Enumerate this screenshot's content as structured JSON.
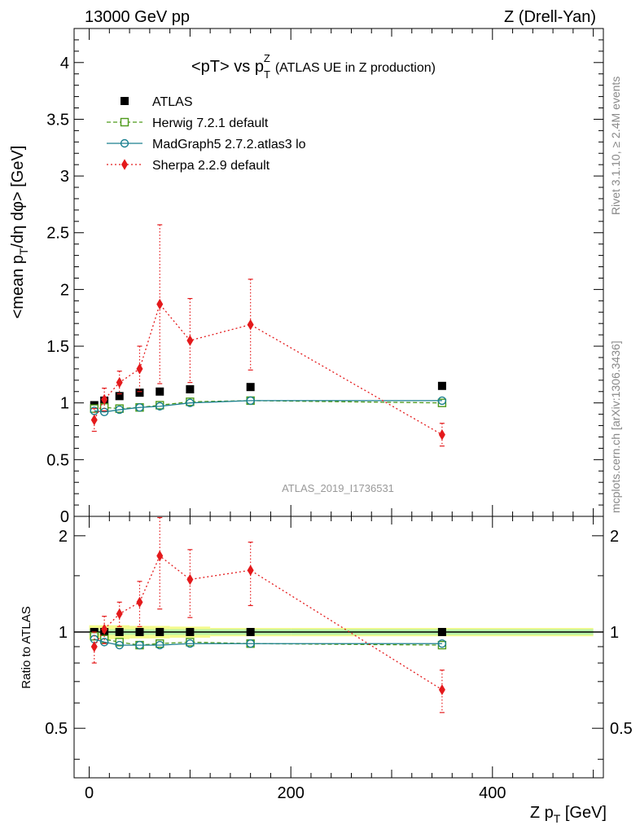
{
  "header": {
    "left": "13000 GeV pp",
    "right": "Z (Drell-Yan)"
  },
  "side_text": {
    "top": "Rivet 3.1.10, ≥ 2.4M events",
    "bottom": "mcplots.cern.ch [arXiv:1306.3436]"
  },
  "watermark": "ATLAS_2019_I1736531",
  "chart_data": {
    "type": "scatter",
    "title": "<pT> vs pTZ (ATLAS UE in Z production)",
    "title_parts": {
      "main": "<pT> vs p",
      "sup": "Z",
      "sub": "T",
      "rest": "(ATLAS UE in Z production)"
    },
    "ylabel": "<mean pT/dη dφ> [GeV]",
    "ylabel_parts": {
      "a": "<mean p",
      "sub": "T",
      "b": "/dη dφ> [GeV]"
    },
    "xlabel": "Z pT [GeV]",
    "xlabel_parts": {
      "a": "Z p",
      "sub": "T",
      "b": " [GeV]"
    },
    "ratio_ylabel": "Ratio to ATLAS",
    "xlim": [
      -15,
      510
    ],
    "ylim": [
      0,
      4.3
    ],
    "ratio_ylim": [
      0.35,
      2.3
    ],
    "x_ticks": [
      "0",
      "200",
      "400"
    ],
    "y_ticks": [
      "0",
      "0.5",
      "1",
      "1.5",
      "2",
      "2.5",
      "3",
      "3.5",
      "4"
    ],
    "ratio_ticks": [
      "0.5",
      "1",
      "2"
    ],
    "legend_position": "top-left",
    "band": {
      "bins": [
        [
          0,
          10
        ],
        [
          10,
          20
        ],
        [
          20,
          40
        ],
        [
          40,
          60
        ],
        [
          60,
          80
        ],
        [
          80,
          120
        ],
        [
          120,
          200
        ],
        [
          200,
          500
        ]
      ],
      "inner": [
        0.02,
        0.02,
        0.02,
        0.02,
        0.02,
        0.02,
        0.02,
        0.02
      ],
      "outer": [
        0.05,
        0.05,
        0.05,
        0.045,
        0.045,
        0.04,
        0.03,
        0.03
      ]
    },
    "series": [
      {
        "name": "ATLAS",
        "color": "#000000",
        "marker": "square-filled",
        "x": [
          5,
          15,
          30,
          50,
          70,
          100,
          160,
          350
        ],
        "y": [
          0.98,
          1.02,
          1.06,
          1.09,
          1.1,
          1.12,
          1.14,
          1.15
        ],
        "err": [
          0,
          0,
          0,
          0,
          0,
          0,
          0,
          0
        ],
        "ratio": [
          1,
          1,
          1,
          1,
          1,
          1,
          1,
          1
        ],
        "ratio_err": [
          0,
          0,
          0,
          0,
          0,
          0,
          0,
          0
        ]
      },
      {
        "name": "Herwig 7.2.1 default",
        "color": "#4d9a1a",
        "marker": "square-open",
        "x": [
          5,
          15,
          30,
          50,
          70,
          100,
          160,
          350
        ],
        "y": [
          0.95,
          0.96,
          0.95,
          0.96,
          0.98,
          1.01,
          1.02,
          1.0
        ],
        "err": [
          0,
          0,
          0,
          0,
          0,
          0,
          0,
          0
        ],
        "ratio": [
          0.97,
          0.95,
          0.93,
          0.91,
          0.92,
          0.93,
          0.92,
          0.91
        ],
        "ratio_err": [
          0,
          0,
          0,
          0,
          0,
          0,
          0,
          0
        ]
      },
      {
        "name": "MadGraph5 2.7.2.atlas3 lo",
        "color": "#1a7f8f",
        "marker": "circle-open",
        "x": [
          5,
          15,
          30,
          50,
          70,
          100,
          160,
          350
        ],
        "y": [
          0.93,
          0.92,
          0.94,
          0.96,
          0.97,
          1.0,
          1.02,
          1.02
        ],
        "err": [
          0,
          0,
          0,
          0,
          0,
          0,
          0,
          0
        ],
        "ratio": [
          0.95,
          0.93,
          0.91,
          0.91,
          0.91,
          0.92,
          0.92,
          0.92
        ],
        "ratio_err": [
          0,
          0,
          0,
          0,
          0,
          0,
          0,
          0
        ]
      },
      {
        "name": "Sherpa 2.2.9 default",
        "color": "#e41a1c",
        "marker": "diamond-filled",
        "x": [
          5,
          15,
          30,
          50,
          70,
          100,
          160,
          350
        ],
        "y": [
          0.85,
          1.03,
          1.18,
          1.3,
          1.87,
          1.55,
          1.69,
          0.72
        ],
        "err": [
          0.1,
          0.1,
          0.1,
          0.2,
          0.7,
          0.37,
          0.4,
          0.1
        ],
        "ratio": [
          0.9,
          1.02,
          1.14,
          1.24,
          1.73,
          1.46,
          1.56,
          0.66
        ],
        "ratio_err": [
          0.1,
          0.1,
          0.1,
          0.2,
          0.55,
          0.35,
          0.35,
          0.1
        ]
      }
    ]
  }
}
